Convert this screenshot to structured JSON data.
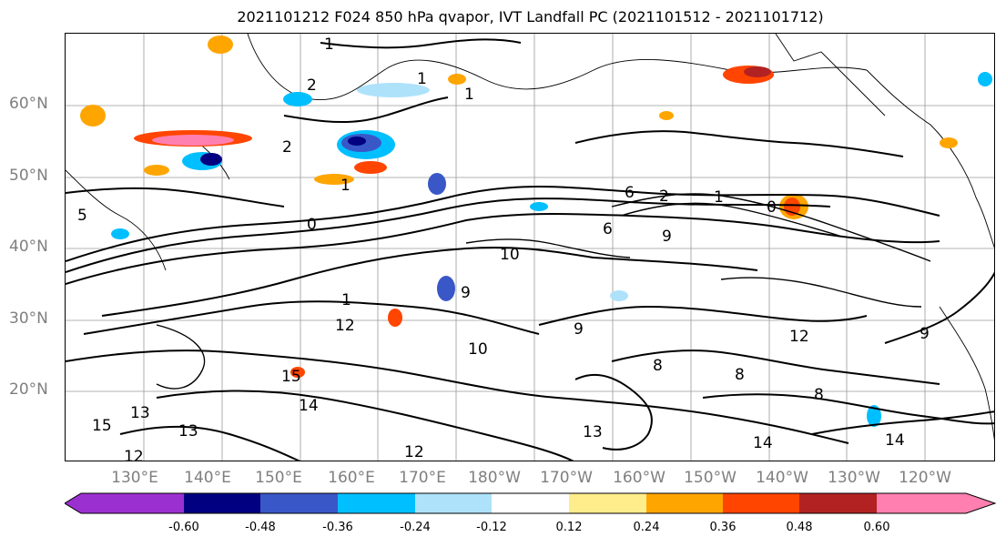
{
  "title": "2021101212 F024 850 hPa qvapor, IVT Landfall PC (2021101512 - 2021101712)",
  "latitude_labels": [
    "60°N",
    "50°N",
    "40°N",
    "30°N",
    "20°N"
  ],
  "longitude_labels": [
    "130°E",
    "140°E",
    "150°E",
    "160°E",
    "170°E",
    "180°W",
    "170°W",
    "160°W",
    "150°W",
    "140°W",
    "130°W",
    "120°W"
  ],
  "contour_labels": [
    "1",
    "1",
    "2",
    "2",
    "1",
    "5",
    "6",
    "0",
    "1",
    "2",
    "0",
    "10",
    "9",
    "6",
    "9",
    "12",
    "10",
    "15",
    "14",
    "13",
    "13",
    "15",
    "12",
    "14",
    "13",
    "9",
    "8",
    "8",
    "8",
    "9",
    "12",
    "1",
    "14",
    "12",
    "1"
  ],
  "colorbar": {
    "ticks": [
      "-0.60",
      "-0.48",
      "-0.36",
      "-0.24",
      "-0.12",
      "0.12",
      "0.24",
      "0.36",
      "0.48",
      "0.60"
    ],
    "colors": [
      "#9b30d0",
      "#000080",
      "#3a57c7",
      "#00bfff",
      "#aee2fb",
      "#ffffff",
      "#ffec8b",
      "#ffa500",
      "#ff4500",
      "#b22222",
      "#ff7fb0",
      "#ff7fb0"
    ]
  }
}
